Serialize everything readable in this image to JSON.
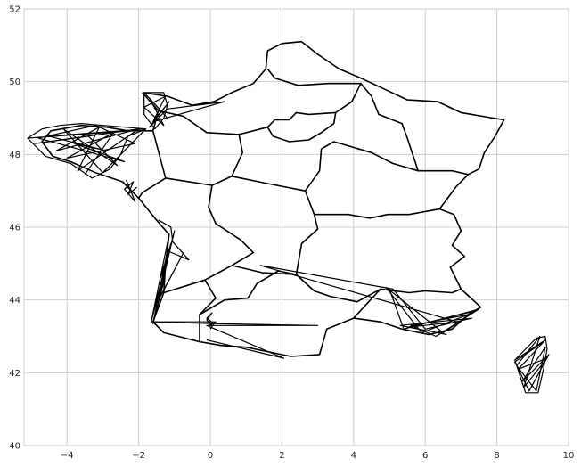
{
  "chart_data": {
    "type": "line",
    "title": "",
    "xlabel": "",
    "ylabel": "",
    "xlim": [
      -5.2,
      10
    ],
    "ylim": [
      40,
      52
    ],
    "xticks": [
      -4,
      -2,
      0,
      2,
      4,
      6,
      8,
      10
    ],
    "yticks": [
      40,
      42,
      44,
      46,
      48,
      50,
      52
    ],
    "xtick_labels": [
      "−4",
      "−2",
      "0",
      "2",
      "4",
      "6",
      "8",
      "10"
    ],
    "ytick_labels": [
      "40",
      "42",
      "44",
      "46",
      "48",
      "50",
      "52"
    ],
    "grid": true,
    "line_color": "#000000",
    "series": [
      {
        "values": [
          [
            -1.9,
            49.7
          ],
          [
            -1.2,
            49.6
          ],
          [
            -0.5,
            49.35
          ],
          [
            0.1,
            49.45
          ],
          [
            0.6,
            49.7
          ],
          [
            1.2,
            49.95
          ],
          [
            1.55,
            50.35
          ],
          [
            1.6,
            50.85
          ],
          [
            2.0,
            51.05
          ],
          [
            2.55,
            51.1
          ],
          [
            3.0,
            50.75
          ],
          [
            3.6,
            50.35
          ],
          [
            4.2,
            50.1
          ],
          [
            4.85,
            49.8
          ],
          [
            5.5,
            49.5
          ],
          [
            6.35,
            49.45
          ],
          [
            7.0,
            49.15
          ],
          [
            7.6,
            49.05
          ],
          [
            8.2,
            48.95
          ],
          [
            7.95,
            48.5
          ],
          [
            7.65,
            48.05
          ],
          [
            7.5,
            47.6
          ],
          [
            7.2,
            47.45
          ],
          [
            6.85,
            47.1
          ],
          [
            6.4,
            46.5
          ],
          [
            6.8,
            46.35
          ],
          [
            7.0,
            45.9
          ],
          [
            6.75,
            45.5
          ],
          [
            7.1,
            45.2
          ],
          [
            6.7,
            44.9
          ],
          [
            7.0,
            44.3
          ],
          [
            7.55,
            43.8
          ],
          [
            7.2,
            43.6
          ],
          [
            6.75,
            43.2
          ],
          [
            6.1,
            43.05
          ],
          [
            5.35,
            43.2
          ],
          [
            4.75,
            43.4
          ],
          [
            4.0,
            43.5
          ],
          [
            3.25,
            43.2
          ],
          [
            3.05,
            42.5
          ],
          [
            2.25,
            42.45
          ],
          [
            1.75,
            42.55
          ],
          [
            1.0,
            42.7
          ],
          [
            0.3,
            42.75
          ],
          [
            -0.3,
            42.85
          ],
          [
            -1.3,
            43.1
          ],
          [
            -1.6,
            43.4
          ],
          [
            -1.3,
            44.2
          ],
          [
            -1.25,
            45.0
          ],
          [
            -1.15,
            45.8
          ],
          [
            -1.55,
            46.25
          ],
          [
            -2.0,
            46.8
          ],
          [
            -2.45,
            47.25
          ],
          [
            -3.2,
            47.5
          ],
          [
            -3.9,
            47.8
          ],
          [
            -4.4,
            47.95
          ],
          [
            -4.7,
            48.35
          ],
          [
            -4.45,
            48.65
          ],
          [
            -3.6,
            48.8
          ],
          [
            -2.9,
            48.75
          ],
          [
            -2.3,
            48.65
          ],
          [
            -1.6,
            48.65
          ],
          [
            -1.45,
            49.2
          ],
          [
            -1.9,
            49.7
          ]
        ]
      },
      {
        "values": [
          [
            1.8,
            48.95
          ],
          [
            2.2,
            48.95
          ],
          [
            2.4,
            49.15
          ],
          [
            2.75,
            49.1
          ],
          [
            3.5,
            49.15
          ],
          [
            3.45,
            48.85
          ],
          [
            3.1,
            48.6
          ],
          [
            2.75,
            48.4
          ],
          [
            2.2,
            48.35
          ],
          [
            1.75,
            48.5
          ],
          [
            1.6,
            48.75
          ],
          [
            1.8,
            48.95
          ]
        ]
      },
      {
        "values": [
          [
            1.6,
            50.35
          ],
          [
            1.8,
            50.1
          ],
          [
            2.45,
            49.9
          ],
          [
            3.3,
            49.95
          ],
          [
            4.2,
            49.95
          ],
          [
            3.95,
            49.45
          ],
          [
            3.5,
            49.15
          ]
        ]
      },
      {
        "values": [
          [
            -1.25,
            47.35
          ],
          [
            -1.9,
            46.95
          ],
          [
            -2.0,
            46.8
          ]
        ]
      },
      {
        "values": [
          [
            -1.45,
            49.2
          ],
          [
            -0.75,
            49.05
          ],
          [
            -0.1,
            48.6
          ],
          [
            0.8,
            48.55
          ],
          [
            1.6,
            48.75
          ]
        ]
      },
      {
        "values": [
          [
            0.8,
            48.55
          ],
          [
            0.9,
            48.05
          ],
          [
            0.6,
            47.4
          ],
          [
            0.05,
            47.15
          ],
          [
            -1.25,
            47.35
          ],
          [
            -1.6,
            48.65
          ]
        ]
      },
      {
        "values": [
          [
            0.05,
            47.15
          ],
          [
            -0.05,
            46.55
          ],
          [
            0.15,
            46.1
          ],
          [
            0.85,
            45.65
          ],
          [
            1.2,
            45.3
          ],
          [
            0.6,
            44.95
          ],
          [
            -0.15,
            44.55
          ],
          [
            0.15,
            44.05
          ],
          [
            -0.3,
            43.6
          ],
          [
            -0.3,
            42.85
          ]
        ]
      },
      {
        "values": [
          [
            -1.3,
            44.2
          ],
          [
            -0.15,
            44.55
          ]
        ]
      },
      {
        "values": [
          [
            0.6,
            47.4
          ],
          [
            1.6,
            47.2
          ],
          [
            2.65,
            47.0
          ],
          [
            2.9,
            46.35
          ],
          [
            3.0,
            45.95
          ],
          [
            2.55,
            45.55
          ],
          [
            2.4,
            44.7
          ],
          [
            1.45,
            44.75
          ],
          [
            0.6,
            44.95
          ]
        ]
      },
      {
        "values": [
          [
            2.9,
            46.35
          ],
          [
            3.85,
            46.35
          ],
          [
            4.45,
            46.25
          ],
          [
            4.95,
            46.35
          ],
          [
            5.55,
            46.35
          ],
          [
            6.4,
            46.5
          ]
        ]
      },
      {
        "values": [
          [
            2.65,
            47.0
          ],
          [
            3.05,
            47.55
          ],
          [
            3.1,
            48.15
          ],
          [
            3.45,
            48.35
          ],
          [
            4.5,
            48.05
          ],
          [
            5.1,
            47.75
          ],
          [
            5.8,
            47.55
          ],
          [
            6.75,
            47.55
          ],
          [
            7.2,
            47.45
          ]
        ]
      },
      {
        "values": [
          [
            4.2,
            49.95
          ],
          [
            4.5,
            49.6
          ],
          [
            4.7,
            49.1
          ],
          [
            5.35,
            48.85
          ],
          [
            5.5,
            48.45
          ],
          [
            5.8,
            47.55
          ]
        ]
      },
      {
        "values": [
          [
            2.4,
            44.7
          ],
          [
            2.9,
            44.25
          ],
          [
            3.35,
            44.1
          ],
          [
            4.1,
            43.95
          ],
          [
            4.75,
            44.3
          ],
          [
            5.55,
            44.2
          ],
          [
            6.0,
            44.25
          ],
          [
            6.75,
            44.2
          ],
          [
            7.0,
            44.3
          ]
        ]
      },
      {
        "values": [
          [
            4.0,
            43.5
          ],
          [
            4.75,
            44.3
          ]
        ]
      },
      {
        "values": [
          [
            -0.3,
            43.6
          ],
          [
            0.4,
            44.0
          ],
          [
            1.05,
            44.05
          ],
          [
            1.3,
            44.45
          ],
          [
            1.9,
            44.8
          ],
          [
            2.4,
            44.7
          ]
        ]
      }
    ],
    "clusters": [
      {
        "values": [
          [
            -5.1,
            48.45
          ],
          [
            -4.7,
            48.7
          ],
          [
            -4.2,
            48.8
          ],
          [
            -3.6,
            48.85
          ],
          [
            -3.0,
            48.8
          ],
          [
            -2.4,
            48.75
          ],
          [
            -1.8,
            48.7
          ],
          [
            -2.3,
            48.5
          ],
          [
            -2.5,
            48.0
          ],
          [
            -2.8,
            47.6
          ],
          [
            -3.3,
            47.35
          ],
          [
            -3.9,
            47.75
          ],
          [
            -4.6,
            47.95
          ],
          [
            -5.1,
            48.45
          ],
          [
            -2.2,
            48.65
          ],
          [
            -4.3,
            48.1
          ],
          [
            -3.1,
            48.75
          ],
          [
            -3.7,
            47.55
          ],
          [
            -2.0,
            48.7
          ],
          [
            -4.9,
            48.3
          ],
          [
            -3.4,
            48.5
          ],
          [
            -2.6,
            47.7
          ],
          [
            -4.1,
            48.7
          ],
          [
            -3.0,
            47.5
          ],
          [
            -1.8,
            48.7
          ],
          [
            -4.5,
            48.5
          ],
          [
            -2.9,
            48.1
          ],
          [
            -3.8,
            48.3
          ],
          [
            -2.4,
            47.8
          ],
          [
            -4.8,
            48.45
          ],
          [
            -3.2,
            48.8
          ],
          [
            -2.1,
            48.3
          ],
          [
            -4.0,
            47.9
          ],
          [
            -2.7,
            48.6
          ],
          [
            -3.5,
            47.45
          ]
        ]
      },
      {
        "values": [
          [
            -1.85,
            49.7
          ],
          [
            -1.3,
            49.7
          ],
          [
            -1.2,
            49.35
          ],
          [
            -1.3,
            49.0
          ],
          [
            -1.55,
            48.7
          ],
          [
            -1.85,
            49.1
          ],
          [
            -1.85,
            49.7
          ],
          [
            -1.2,
            49.0
          ],
          [
            -1.7,
            49.55
          ],
          [
            -1.3,
            48.8
          ],
          [
            -1.85,
            49.3
          ],
          [
            -1.25,
            49.6
          ],
          [
            -1.6,
            48.9
          ],
          [
            -1.15,
            49.45
          ],
          [
            -1.7,
            48.75
          ],
          [
            -1.2,
            49.25
          ],
          [
            0.4,
            49.45
          ],
          [
            -1.6,
            48.9
          ]
        ]
      },
      {
        "values": [
          [
            -2.35,
            47.3
          ],
          [
            -2.1,
            46.7
          ],
          [
            -2.4,
            47.05
          ],
          [
            -2.15,
            47.25
          ],
          [
            -2.3,
            46.9
          ],
          [
            -2.05,
            47.1
          ]
        ]
      },
      {
        "values": [
          [
            -1.45,
            46.2
          ],
          [
            -1.1,
            46.0
          ],
          [
            -1.05,
            45.6
          ],
          [
            -0.6,
            45.1
          ],
          [
            -1.2,
            45.35
          ],
          [
            -1.6,
            43.35
          ],
          [
            -1.3,
            44.5
          ],
          [
            -1.15,
            45.8
          ],
          [
            -1.65,
            43.4
          ],
          [
            -1.0,
            45.9
          ],
          [
            -1.45,
            44.0
          ],
          [
            -0.75,
            45.3
          ],
          [
            -1.55,
            43.8
          ],
          [
            -1.1,
            45.55
          ],
          [
            -1.4,
            44.6
          ],
          [
            -1.25,
            45.0
          ],
          [
            -1.65,
            43.4
          ],
          [
            0.15,
            43.4
          ],
          [
            -0.05,
            43.3
          ]
        ]
      },
      {
        "values": [
          [
            0.05,
            43.3
          ],
          [
            -0.1,
            43.45
          ],
          [
            0.05,
            43.65
          ],
          [
            -0.1,
            43.5
          ],
          [
            0.1,
            43.35
          ],
          [
            0.0,
            43.2
          ]
        ]
      },
      {
        "values": [
          [
            -1.65,
            43.4
          ],
          [
            0.05,
            43.35
          ],
          [
            3.0,
            43.3
          ],
          [
            -0.1,
            43.3
          ],
          [
            2.05,
            42.4
          ],
          [
            -0.1,
            42.9
          ]
        ]
      },
      {
        "values": [
          [
            5.0,
            44.3
          ],
          [
            5.4,
            43.2
          ],
          [
            7.5,
            43.75
          ],
          [
            6.3,
            43.0
          ],
          [
            5.6,
            43.3
          ],
          [
            7.2,
            43.6
          ],
          [
            5.9,
            43.1
          ],
          [
            4.9,
            44.35
          ],
          [
            6.5,
            43.1
          ],
          [
            7.4,
            43.7
          ],
          [
            5.5,
            43.25
          ],
          [
            6.9,
            43.4
          ],
          [
            1.4,
            44.95
          ],
          [
            5.1,
            44.3
          ],
          [
            6.0,
            43.2
          ],
          [
            7.3,
            43.5
          ],
          [
            5.3,
            43.3
          ],
          [
            6.6,
            43.05
          ]
        ]
      },
      {
        "values": [
          [
            8.5,
            42.35
          ],
          [
            9.1,
            42.95
          ],
          [
            9.35,
            43.0
          ],
          [
            9.4,
            42.65
          ],
          [
            9.3,
            42.1
          ],
          [
            9.15,
            41.45
          ],
          [
            8.8,
            41.45
          ],
          [
            8.65,
            41.9
          ],
          [
            8.5,
            42.35
          ],
          [
            9.35,
            42.9
          ],
          [
            8.6,
            42.1
          ],
          [
            9.4,
            42.4
          ],
          [
            8.75,
            41.6
          ],
          [
            9.2,
            43.0
          ],
          [
            8.55,
            42.2
          ],
          [
            9.1,
            41.5
          ],
          [
            9.35,
            42.7
          ],
          [
            8.7,
            41.75
          ],
          [
            9.45,
            42.5
          ],
          [
            8.9,
            41.5
          ],
          [
            8.5,
            42.3
          ],
          [
            9.3,
            42.85
          ]
        ]
      }
    ]
  }
}
